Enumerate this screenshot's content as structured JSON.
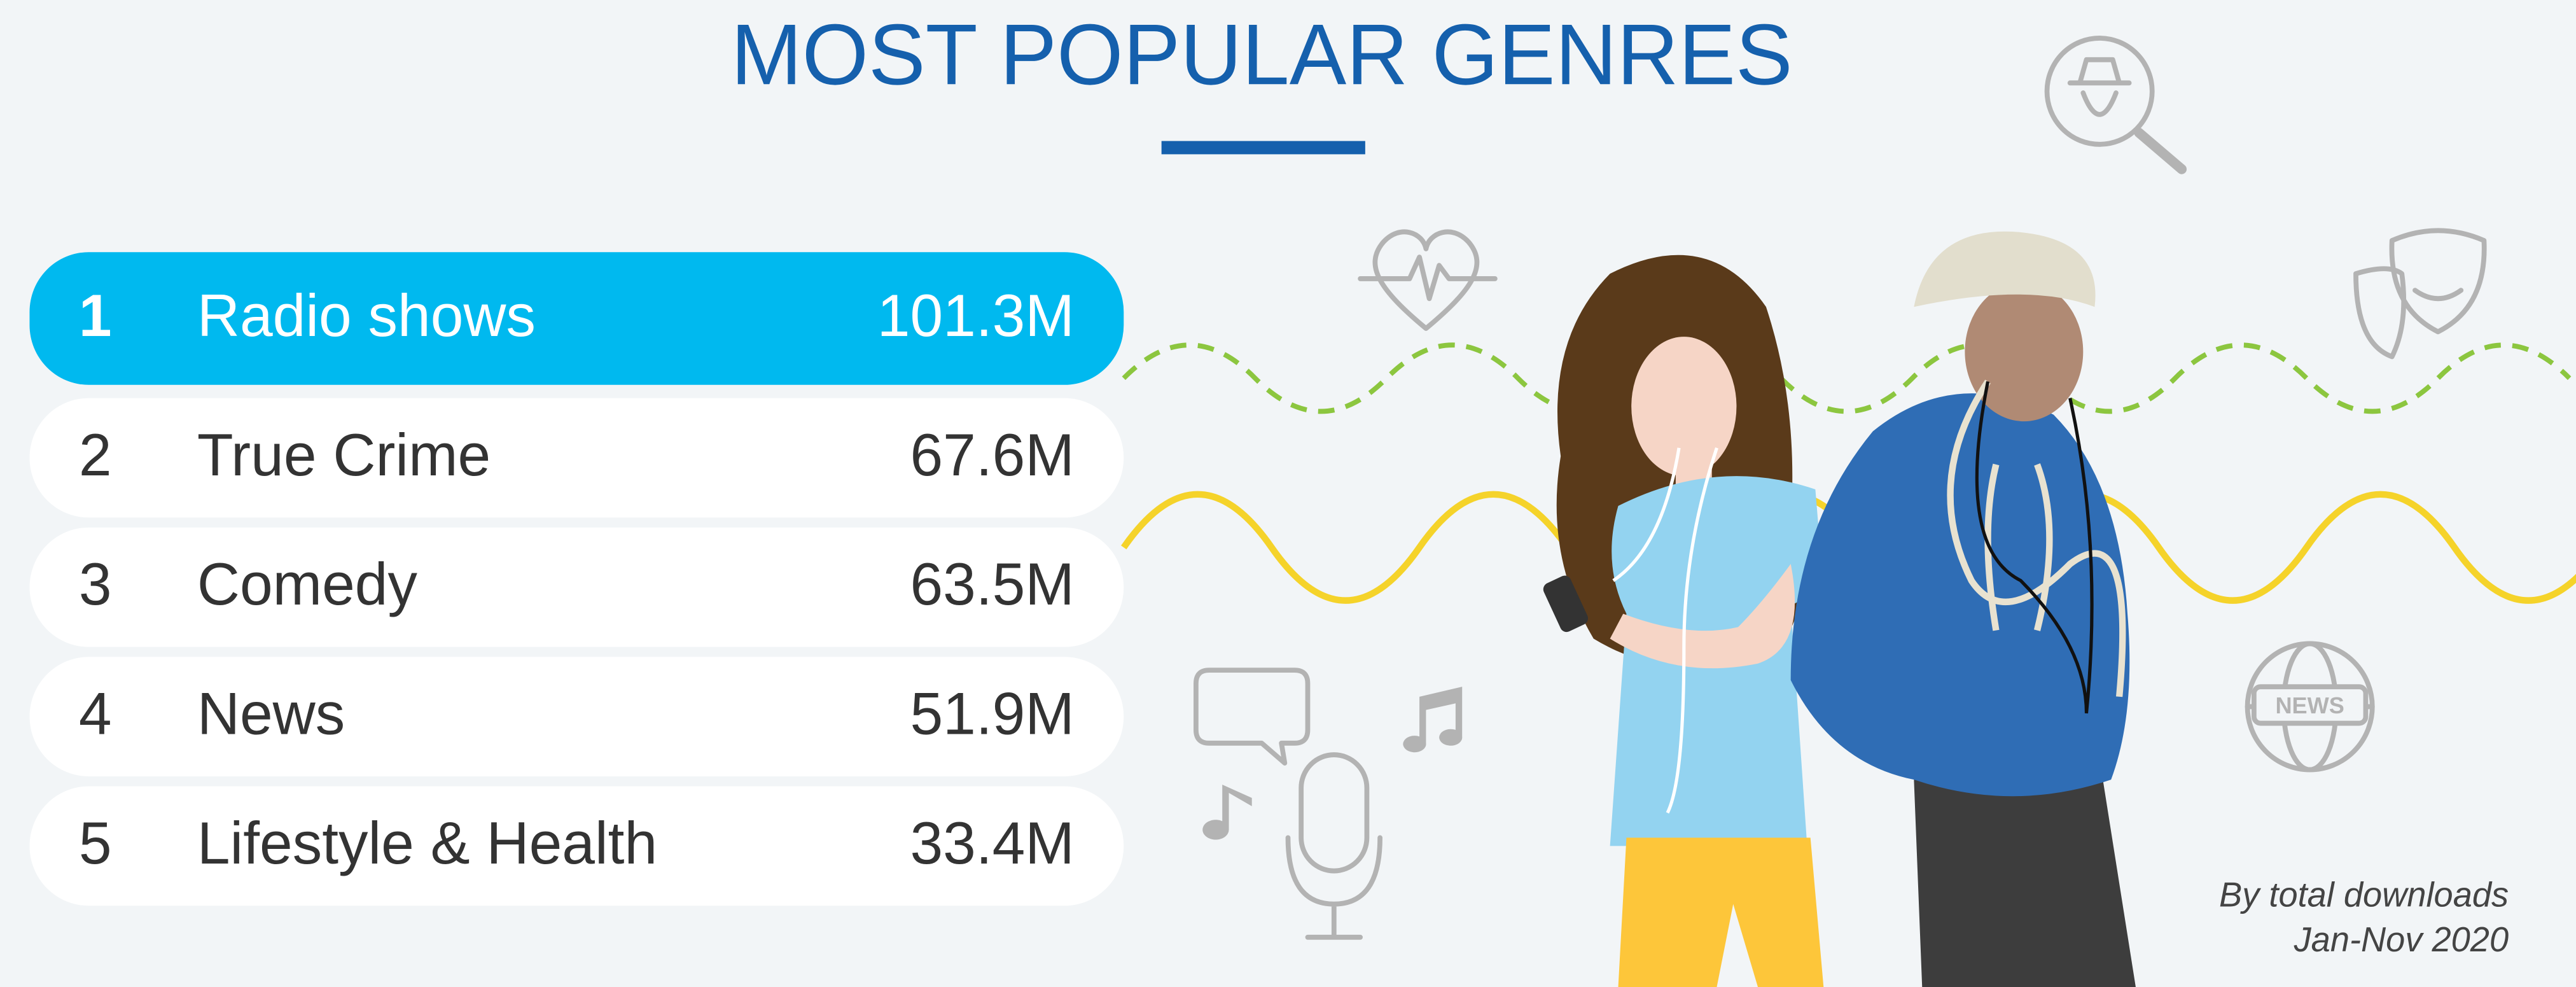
{
  "title": "MOST POPULAR GENRES",
  "rows": [
    {
      "rank": 1,
      "genre": "Radio shows",
      "downloads": "101.3M"
    },
    {
      "rank": 2,
      "genre": "True Crime",
      "downloads": "67.6M"
    },
    {
      "rank": 3,
      "genre": "Comedy",
      "downloads": "63.5M"
    },
    {
      "rank": 4,
      "genre": "News",
      "downloads": "51.9M"
    },
    {
      "rank": 5,
      "genre": "Lifestyle & Health",
      "downloads": "33.4M"
    }
  ],
  "note": [
    "By total downloads",
    "Jan-Nov 2020"
  ]
}
